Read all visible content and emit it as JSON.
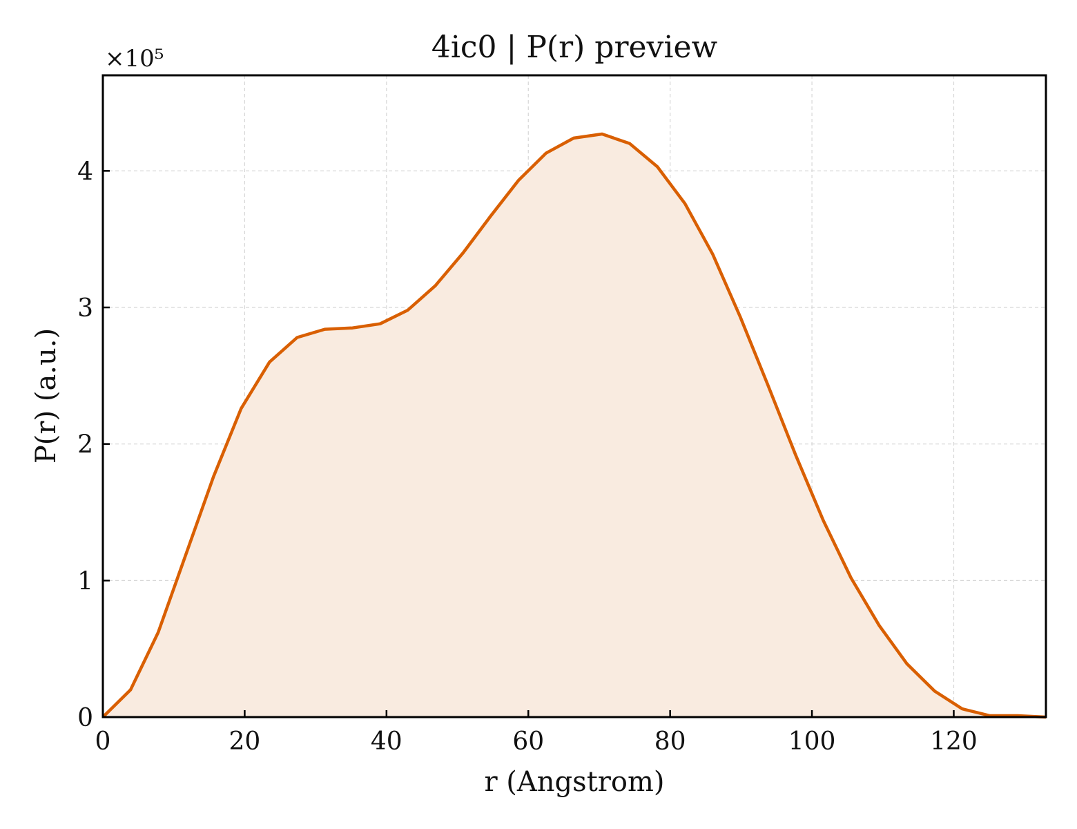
{
  "chart_data": {
    "type": "area",
    "title": "4ic0 | P(r) preview",
    "xlabel": "r (Angstrom)",
    "ylabel": "P(r) (a.u.)",
    "y_multiplier": "×10⁵",
    "xlim": [
      0,
      133
    ],
    "ylim": [
      0,
      4.7
    ],
    "y_scale_factor": 100000,
    "xticks": [
      0,
      20,
      40,
      60,
      80,
      100,
      120
    ],
    "yticks": [
      0,
      1,
      2,
      3,
      4
    ],
    "xtick_labels": [
      "0",
      "20",
      "40",
      "60",
      "80",
      "100",
      "120"
    ],
    "ytick_labels": [
      "0",
      "1",
      "2",
      "3",
      "4"
    ],
    "grid": true,
    "legend": "none",
    "colors": {
      "line": "#d95f02",
      "fill": "#f9ebe0",
      "grid": "#d6d6d6",
      "axes": "#000000"
    },
    "series": [
      {
        "x": [
          0,
          3.9,
          7.8,
          11.7,
          15.6,
          19.5,
          23.5,
          27.4,
          31.3,
          35.2,
          39.1,
          43.0,
          46.9,
          50.8,
          54.7,
          58.6,
          62.5,
          66.4,
          70.4,
          74.3,
          78.2,
          82.1,
          86.0,
          89.9,
          93.8,
          97.7,
          101.6,
          105.5,
          109.5,
          113.4,
          117.3,
          121.2,
          125.1,
          129.0,
          133.0
        ],
        "y": [
          0,
          0.2,
          0.62,
          1.19,
          1.76,
          2.26,
          2.6,
          2.78,
          2.84,
          2.85,
          2.88,
          2.98,
          3.16,
          3.4,
          3.67,
          3.93,
          4.13,
          4.24,
          4.27,
          4.2,
          4.03,
          3.76,
          3.39,
          2.93,
          2.43,
          1.92,
          1.44,
          1.02,
          0.67,
          0.39,
          0.19,
          0.06,
          0.01,
          0.01,
          0.0
        ]
      }
    ]
  }
}
